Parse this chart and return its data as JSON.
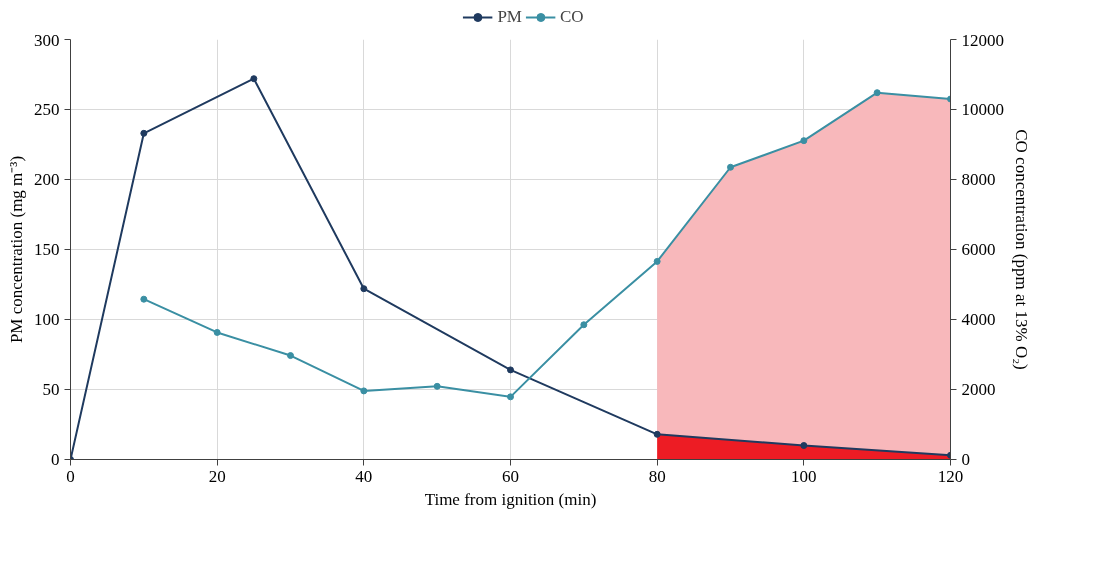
{
  "chart_data": {
    "type": "line",
    "xlabel": "Time from ignition (min)",
    "ylabel": "PM concentration (mg m⁻³)",
    "y2label": "CO concentration (ppm at 13% O₂)",
    "series": [
      {
        "type": "area",
        "axis": "y2",
        "color": "#f8b8bb",
        "x": [
          80,
          90,
          100,
          110,
          120
        ],
        "values": [
          5660,
          8350,
          9110,
          10480,
          10300
        ]
      },
      {
        "type": "area",
        "color": "#ed1c24",
        "x": [
          80,
          100,
          120
        ],
        "values": [
          18,
          10,
          3
        ]
      },
      {
        "name": "PM",
        "color": "#1f3a5f",
        "marker": "circle",
        "x": [
          0,
          10,
          25,
          40,
          60,
          80,
          100,
          120
        ],
        "values": [
          0,
          233,
          272,
          122,
          64,
          18,
          10,
          3
        ]
      },
      {
        "name": "CO",
        "axis": "y2",
        "color": "#3a8fa3",
        "marker": "circle",
        "x": [
          10,
          20,
          30,
          40,
          50,
          60,
          70,
          80,
          90,
          100,
          110,
          120
        ],
        "values": [
          4580,
          3630,
          2970,
          1960,
          2090,
          1790,
          3850,
          5660,
          8350,
          9110,
          10480,
          10300
        ]
      }
    ],
    "xlim": [
      0,
      120
    ],
    "ylim": [
      0,
      300
    ],
    "y2lim": [
      0,
      12000
    ],
    "xticks": [
      0,
      20,
      40,
      60,
      80,
      100,
      120
    ],
    "yticks": [
      0,
      50,
      100,
      150,
      200,
      250,
      300
    ],
    "y2ticks": [
      0,
      2000,
      4000,
      6000,
      8000,
      10000,
      12000
    ],
    "grid": true,
    "legend": "top",
    "line_style": "solid"
  }
}
